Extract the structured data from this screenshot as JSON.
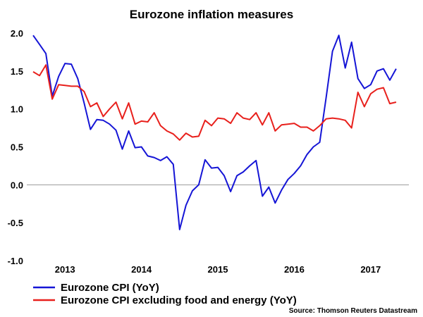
{
  "chart_data": {
    "type": "line",
    "title": "Eurozone inflation measures",
    "xlabel": "",
    "ylabel": "",
    "ylim": [
      -1.0,
      2.0
    ],
    "yticks": [
      2.0,
      1.5,
      1.0,
      0.5,
      0.0,
      -0.5,
      -1.0
    ],
    "ytick_labels": [
      "2.0",
      "1.5",
      "1.0",
      "0.5",
      "0.0",
      "-0.5",
      "-1.0"
    ],
    "xlim": [
      2012.5,
      2017.5
    ],
    "xticks": [
      2013,
      2014,
      2015,
      2016,
      2017
    ],
    "xtick_labels": [
      "2013",
      "2014",
      "2015",
      "2016",
      "2017"
    ],
    "zero_line": true,
    "legend_position": "bottom-left",
    "source": "Source: Thomson Reuters Datastream",
    "series": [
      {
        "name": "Eurozone CPI (YoY)",
        "color": "#1515d6",
        "x": [
          2012.583,
          2012.667,
          2012.75,
          2012.833,
          2012.917,
          2013.0,
          2013.083,
          2013.167,
          2013.25,
          2013.333,
          2013.417,
          2013.5,
          2013.583,
          2013.667,
          2013.75,
          2013.833,
          2013.917,
          2014.0,
          2014.083,
          2014.167,
          2014.25,
          2014.333,
          2014.417,
          2014.5,
          2014.583,
          2014.667,
          2014.75,
          2014.833,
          2014.917,
          2015.0,
          2015.083,
          2015.167,
          2015.25,
          2015.333,
          2015.417,
          2015.5,
          2015.583,
          2015.667,
          2015.75,
          2015.833,
          2015.917,
          2016.0,
          2016.083,
          2016.167,
          2016.25,
          2016.333,
          2016.417,
          2016.5,
          2016.583,
          2016.667,
          2016.75,
          2016.833,
          2016.917,
          2017.0,
          2017.083,
          2017.167,
          2017.25,
          2017.333
        ],
        "values": [
          1.97,
          1.85,
          1.73,
          1.17,
          1.43,
          1.6,
          1.59,
          1.4,
          1.08,
          0.73,
          0.86,
          0.85,
          0.8,
          0.72,
          0.47,
          0.71,
          0.49,
          0.5,
          0.38,
          0.36,
          0.32,
          0.37,
          0.27,
          -0.59,
          -0.27,
          -0.08,
          0.0,
          0.33,
          0.22,
          0.23,
          0.12,
          -0.09,
          0.12,
          0.17,
          0.25,
          0.32,
          -0.15,
          -0.03,
          -0.24,
          -0.07,
          0.07,
          0.15,
          0.25,
          0.4,
          0.5,
          0.56,
          1.15,
          1.76,
          1.97,
          1.54,
          1.88,
          1.4,
          1.27,
          1.32,
          1.5,
          1.53,
          1.38,
          1.53
        ]
      },
      {
        "name": "Eurozone CPI excluding food and energy (YoY)",
        "color": "#e8201c",
        "x": [
          2012.583,
          2012.667,
          2012.75,
          2012.833,
          2012.917,
          2013.0,
          2013.083,
          2013.167,
          2013.25,
          2013.333,
          2013.417,
          2013.5,
          2013.583,
          2013.667,
          2013.75,
          2013.833,
          2013.917,
          2014.0,
          2014.083,
          2014.167,
          2014.25,
          2014.333,
          2014.417,
          2014.5,
          2014.583,
          2014.667,
          2014.75,
          2014.833,
          2014.917,
          2015.0,
          2015.083,
          2015.167,
          2015.25,
          2015.333,
          2015.417,
          2015.5,
          2015.583,
          2015.667,
          2015.75,
          2015.833,
          2015.917,
          2016.0,
          2016.083,
          2016.167,
          2016.25,
          2016.333,
          2016.417,
          2016.5,
          2016.583,
          2016.667,
          2016.75,
          2016.833,
          2016.917,
          2017.0,
          2017.083,
          2017.167,
          2017.25,
          2017.333
        ],
        "values": [
          1.49,
          1.44,
          1.58,
          1.13,
          1.32,
          1.31,
          1.3,
          1.3,
          1.23,
          1.03,
          1.08,
          0.9,
          1.0,
          1.09,
          0.87,
          1.08,
          0.8,
          0.84,
          0.83,
          0.95,
          0.78,
          0.71,
          0.67,
          0.59,
          0.68,
          0.63,
          0.64,
          0.85,
          0.78,
          0.88,
          0.87,
          0.81,
          0.95,
          0.88,
          0.86,
          0.95,
          0.79,
          0.95,
          0.71,
          0.79,
          0.8,
          0.81,
          0.76,
          0.76,
          0.71,
          0.78,
          0.87,
          0.88,
          0.87,
          0.85,
          0.75,
          1.22,
          1.03,
          1.2,
          1.26,
          1.28,
          1.07,
          1.09
        ]
      }
    ]
  }
}
